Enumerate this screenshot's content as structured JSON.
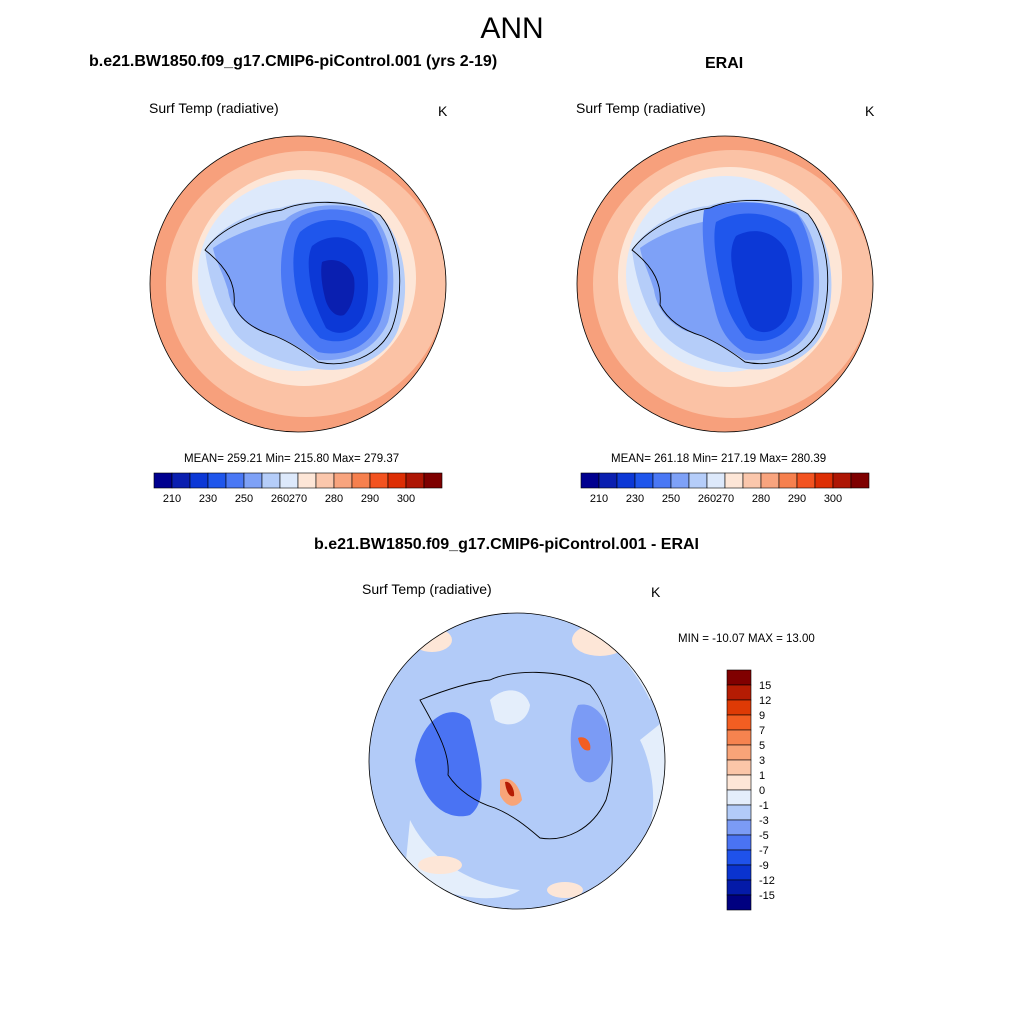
{
  "title": "ANN",
  "colors": {
    "abs_scale": [
      "#00008f",
      "#0a1fb0",
      "#0c38d6",
      "#1f56ec",
      "#4a78f5",
      "#7ea1f7",
      "#b5cdf9",
      "#dde9fb",
      "#fde6d7",
      "#fbc7ac",
      "#f8a47e",
      "#f6804e",
      "#f35320",
      "#dd2e04",
      "#ae1604",
      "#7e0000"
    ],
    "diff_scale": [
      "#000080",
      "#041aa8",
      "#0a33cf",
      "#1f52ea",
      "#4a73f3",
      "#7b9bf5",
      "#b2cbf8",
      "#e4eefb",
      "#fde6d7",
      "#fbc6a8",
      "#f8a478",
      "#f6834f",
      "#f25e22",
      "#de3a05",
      "#b51c03",
      "#800000"
    ]
  },
  "panels": [
    {
      "name": "model",
      "title": "b.e21.BW1850.f09_g17.CMIP6-piControl.001 (yrs 2-19)",
      "variable": "Surf Temp (radiative)",
      "units": "K",
      "stats": "MEAN= 259.21  Min= 215.80  Max= 279.37"
    },
    {
      "name": "obs",
      "title": "ERAI",
      "variable": "Surf Temp (radiative)",
      "units": "K",
      "stats": "MEAN= 261.18  Min= 217.19  Max= 280.39"
    },
    {
      "name": "diff",
      "title": "b.e21.BW1850.f09_g17.CMIP6-piControl.001 - ERAI",
      "variable": "Surf Temp (radiative)",
      "units": "K",
      "stats": "MIN = -10.07 MAX =  13.00"
    }
  ],
  "chart_data": [
    {
      "type": "heatmap",
      "title": "b.e21.BW1850.f09_g17.CMIP6-piControl.001 (yrs 2-19)",
      "variable": "Surf Temp (radiative)",
      "units": "K",
      "mean": 259.21,
      "min": 215.8,
      "max": 279.37,
      "colorbar_ticks": [
        "210",
        "230",
        "250",
        "260",
        "270",
        "280",
        "290",
        "300"
      ]
    },
    {
      "type": "heatmap",
      "title": "ERAI",
      "variable": "Surf Temp (radiative)",
      "units": "K",
      "mean": 261.18,
      "min": 217.19,
      "max": 280.39,
      "colorbar_ticks": [
        "210",
        "230",
        "250",
        "260",
        "270",
        "280",
        "290",
        "300"
      ]
    },
    {
      "type": "heatmap",
      "title": "b.e21.BW1850.f09_g17.CMIP6-piControl.001 - ERAI",
      "variable": "Surf Temp (radiative)",
      "units": "K",
      "min": -10.07,
      "max": 13.0,
      "colorbar_ticks": [
        "15",
        "12",
        "9",
        "7",
        "5",
        "3",
        "1",
        "0",
        "-1",
        "-3",
        "-5",
        "-7",
        "-9",
        "-12",
        "-15"
      ]
    }
  ]
}
